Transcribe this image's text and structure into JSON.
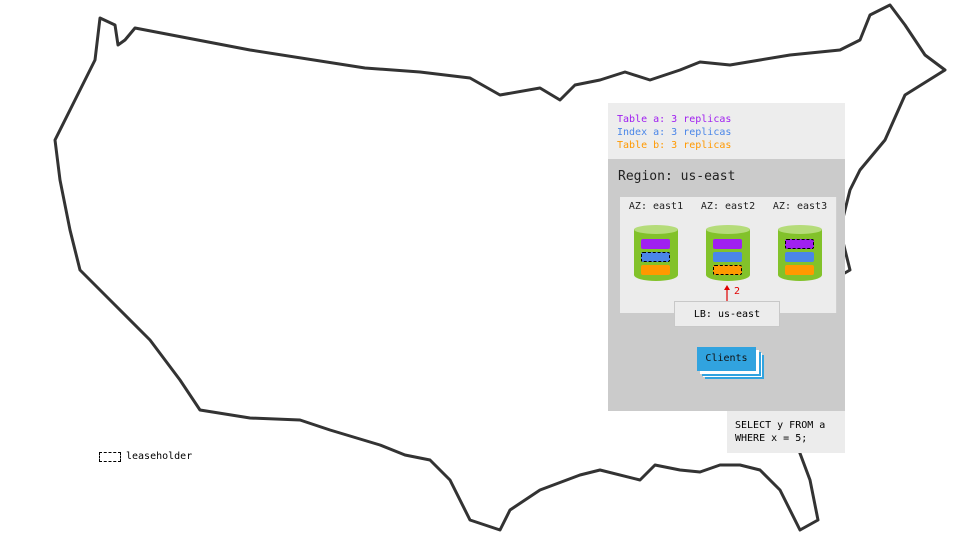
{
  "replica_legend": [
    {
      "text": "Table a: 3 replicas",
      "color": "#a020f0"
    },
    {
      "text": "Index a: 3 replicas",
      "color": "#4a86e8"
    },
    {
      "text": "Table b: 3 replicas",
      "color": "#ff9900"
    }
  ],
  "region": {
    "title": "Region: us-east"
  },
  "zones": [
    {
      "label": "AZ: east1",
      "leaseholder": "index-a"
    },
    {
      "label": "AZ: east2",
      "leaseholder": "table-b"
    },
    {
      "label": "AZ: east3",
      "leaseholder": "table-a"
    }
  ],
  "arrow_label": "2",
  "load_balancer": "LB: us-east",
  "clients": "Clients",
  "query": "SELECT y FROM a\nWHERE x = 5;",
  "key": {
    "leaseholder": "leaseholder"
  },
  "colors": {
    "node": "#82c22a",
    "clients": "#31a3df",
    "arrow": "#e00000"
  }
}
